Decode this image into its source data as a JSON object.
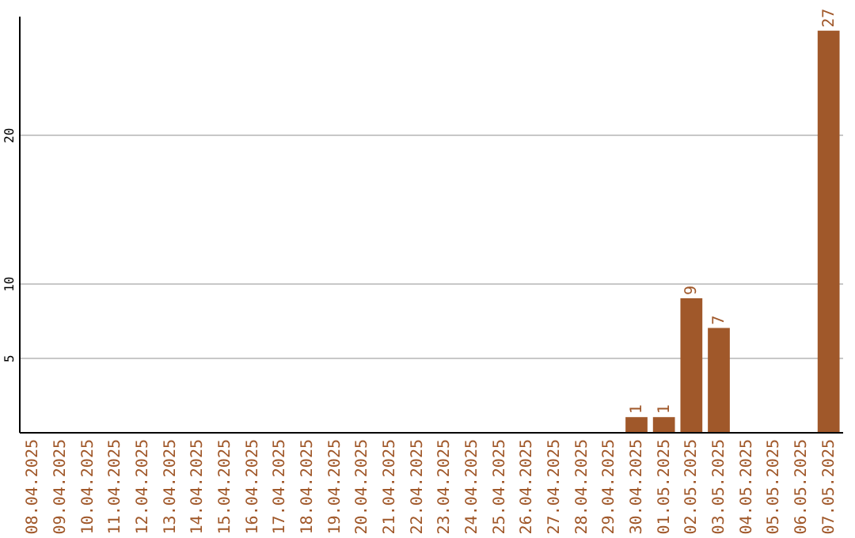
{
  "chart_data": {
    "type": "bar",
    "categories": [
      "08.04.2025",
      "09.04.2025",
      "10.04.2025",
      "11.04.2025",
      "12.04.2025",
      "13.04.2025",
      "14.04.2025",
      "15.04.2025",
      "16.04.2025",
      "17.04.2025",
      "18.04.2025",
      "19.04.2025",
      "20.04.2025",
      "21.04.2025",
      "22.04.2025",
      "23.04.2025",
      "24.04.2025",
      "25.04.2025",
      "26.04.2025",
      "27.04.2025",
      "28.04.2025",
      "29.04.2025",
      "30.04.2025",
      "01.05.2025",
      "02.05.2025",
      "03.05.2025",
      "04.05.2025",
      "05.05.2025",
      "06.05.2025",
      "07.05.2025"
    ],
    "values": [
      0,
      0,
      0,
      0,
      0,
      0,
      0,
      0,
      0,
      0,
      0,
      0,
      0,
      0,
      0,
      0,
      0,
      0,
      0,
      0,
      0,
      0,
      1,
      1,
      9,
      7,
      0,
      0,
      0,
      27
    ],
    "value_labels": [
      null,
      null,
      null,
      null,
      null,
      null,
      null,
      null,
      null,
      null,
      null,
      null,
      null,
      null,
      null,
      null,
      null,
      null,
      null,
      null,
      null,
      null,
      "1",
      "1",
      "9",
      "7",
      null,
      null,
      null,
      "27"
    ],
    "color": "#a0582a",
    "ylim": [
      0,
      28
    ],
    "yticks": [
      5,
      10,
      20
    ],
    "grid": "y"
  }
}
